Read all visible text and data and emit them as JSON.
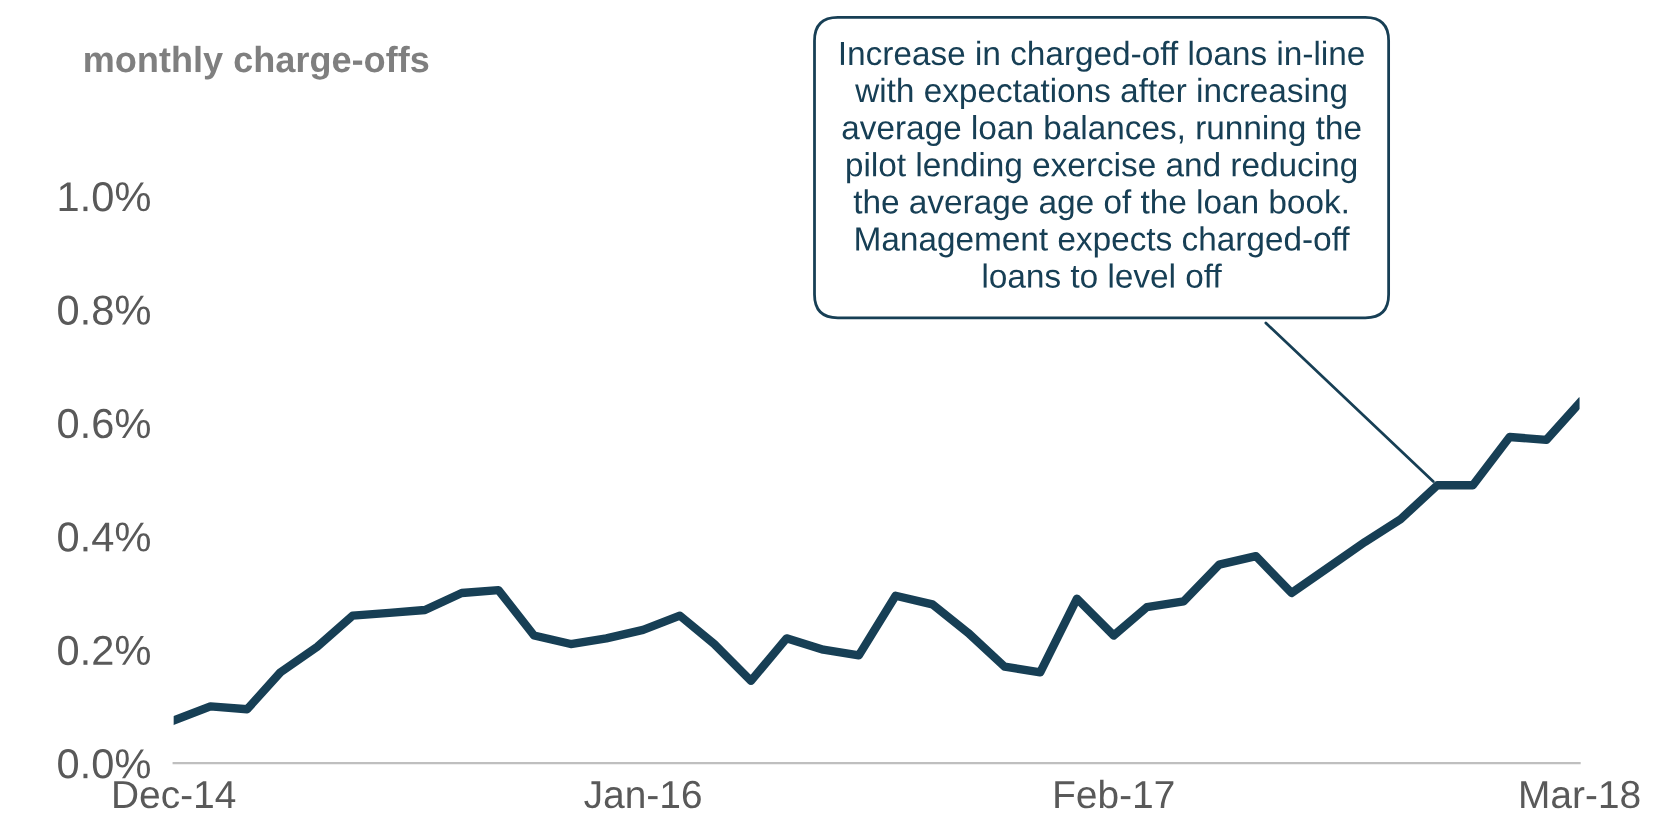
{
  "chart_data": {
    "type": "line",
    "title": "monthly charge-offs",
    "x": [
      "2014-12",
      "2015-01",
      "2015-02",
      "2015-03",
      "2015-04",
      "2015-05",
      "2015-06",
      "2015-07",
      "2015-08",
      "2015-09",
      "2015-10",
      "2015-11",
      "2015-12",
      "2016-01",
      "2016-02",
      "2016-03",
      "2016-04",
      "2016-05",
      "2016-06",
      "2016-07",
      "2016-08",
      "2016-09",
      "2016-10",
      "2016-11",
      "2016-12",
      "2017-01",
      "2017-02",
      "2017-03",
      "2017-04",
      "2017-05",
      "2017-06",
      "2017-07",
      "2017-08",
      "2017-09",
      "2017-10",
      "2017-11",
      "2017-12",
      "2018-01",
      "2018-02",
      "2018-03"
    ],
    "series": [
      {
        "color": "#173f55",
        "values": [
          0.075,
          0.1,
          0.095,
          0.16,
          0.205,
          0.26,
          0.265,
          0.27,
          0.3,
          0.305,
          0.225,
          0.21,
          0.22,
          0.235,
          0.26,
          0.21,
          0.145,
          0.22,
          0.2,
          0.19,
          0.295,
          0.28,
          0.23,
          0.17,
          0.16,
          0.29,
          0.225,
          0.275,
          0.285,
          0.35,
          0.365,
          0.3,
          0.345,
          0.39,
          0.43,
          0.49,
          0.49,
          0.575,
          0.57,
          0.635
        ]
      }
    ],
    "xlim": [
      "2014-12",
      "2018-03"
    ],
    "xticks": [
      {
        "value": "2014-12",
        "label": "Dec-14"
      },
      {
        "value": "2016-01",
        "label": "Jan-16"
      },
      {
        "value": "2017-02",
        "label": "Feb-17"
      },
      {
        "value": "2018-03",
        "label": "Mar-18"
      }
    ],
    "ylim": [
      0,
      1.0
    ],
    "yticks": [
      {
        "value": 0,
        "label": "0.0%"
      },
      {
        "value": 0.2,
        "label": "0.2%"
      },
      {
        "value": 0.4,
        "label": "0.4%"
      },
      {
        "value": 0.6,
        "label": "0.6%"
      },
      {
        "value": 0.8,
        "label": "0.8%"
      },
      {
        "value": 1.0,
        "label": "1.0%"
      }
    ],
    "grid": false,
    "legend": false,
    "marker": "none",
    "line_style": "solid",
    "annotations": [
      {
        "text": "Increase in charged-off loans in-line\nwith expectations after increasing\naverage loan balances, running the\npilot lending exercise and reducing\nthe average age of the loan book.\nManagement expects charged-off\nloans to level off",
        "x": "2017-11",
        "y": 0.49
      }
    ]
  }
}
